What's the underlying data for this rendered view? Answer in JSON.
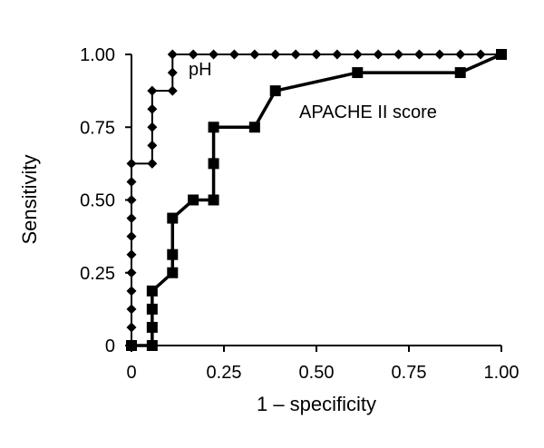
{
  "chart_data": {
    "type": "line",
    "xlabel": "1 – specificity",
    "ylabel": "Sensitivity",
    "xlim": [
      0,
      1
    ],
    "ylim": [
      0,
      1
    ],
    "x_ticks": [
      "0",
      "0.25",
      "0.50",
      "0.75",
      "1.00"
    ],
    "y_ticks": [
      "0",
      "0.25",
      "0.50",
      "0.75",
      "1.00"
    ],
    "grid": false,
    "series": [
      {
        "name": "pH",
        "marker": "diamond",
        "line_width": "thin",
        "points": [
          [
            0,
            0
          ],
          [
            0,
            0.0625
          ],
          [
            0,
            0.125
          ],
          [
            0,
            0.1875
          ],
          [
            0,
            0.25
          ],
          [
            0,
            0.3125
          ],
          [
            0,
            0.375
          ],
          [
            0,
            0.4375
          ],
          [
            0,
            0.5
          ],
          [
            0,
            0.5625
          ],
          [
            0,
            0.625
          ],
          [
            0.056,
            0.625
          ],
          [
            0.056,
            0.6875
          ],
          [
            0.056,
            0.75
          ],
          [
            0.056,
            0.8125
          ],
          [
            0.056,
            0.875
          ],
          [
            0.111,
            0.875
          ],
          [
            0.111,
            0.9375
          ],
          [
            0.111,
            1.0
          ],
          [
            0.167,
            1.0
          ],
          [
            0.222,
            1.0
          ],
          [
            0.278,
            1.0
          ],
          [
            0.333,
            1.0
          ],
          [
            0.389,
            1.0
          ],
          [
            0.444,
            1.0
          ],
          [
            0.5,
            1.0
          ],
          [
            0.556,
            1.0
          ],
          [
            0.611,
            1.0
          ],
          [
            0.667,
            1.0
          ],
          [
            0.722,
            1.0
          ],
          [
            0.778,
            1.0
          ],
          [
            0.833,
            1.0
          ],
          [
            0.889,
            1.0
          ],
          [
            0.944,
            1.0
          ],
          [
            1.0,
            1.0
          ]
        ]
      },
      {
        "name": "APACHE II score",
        "marker": "square",
        "line_width": "thick",
        "points": [
          [
            0,
            0
          ],
          [
            0.056,
            0
          ],
          [
            0.056,
            0.0625
          ],
          [
            0.056,
            0.125
          ],
          [
            0.056,
            0.1875
          ],
          [
            0.111,
            0.25
          ],
          [
            0.111,
            0.3125
          ],
          [
            0.111,
            0.4375
          ],
          [
            0.167,
            0.5
          ],
          [
            0.222,
            0.5
          ],
          [
            0.222,
            0.625
          ],
          [
            0.222,
            0.75
          ],
          [
            0.333,
            0.75
          ],
          [
            0.389,
            0.875
          ],
          [
            0.611,
            0.9375
          ],
          [
            0.889,
            0.9375
          ],
          [
            1.0,
            1.0
          ]
        ]
      }
    ]
  }
}
